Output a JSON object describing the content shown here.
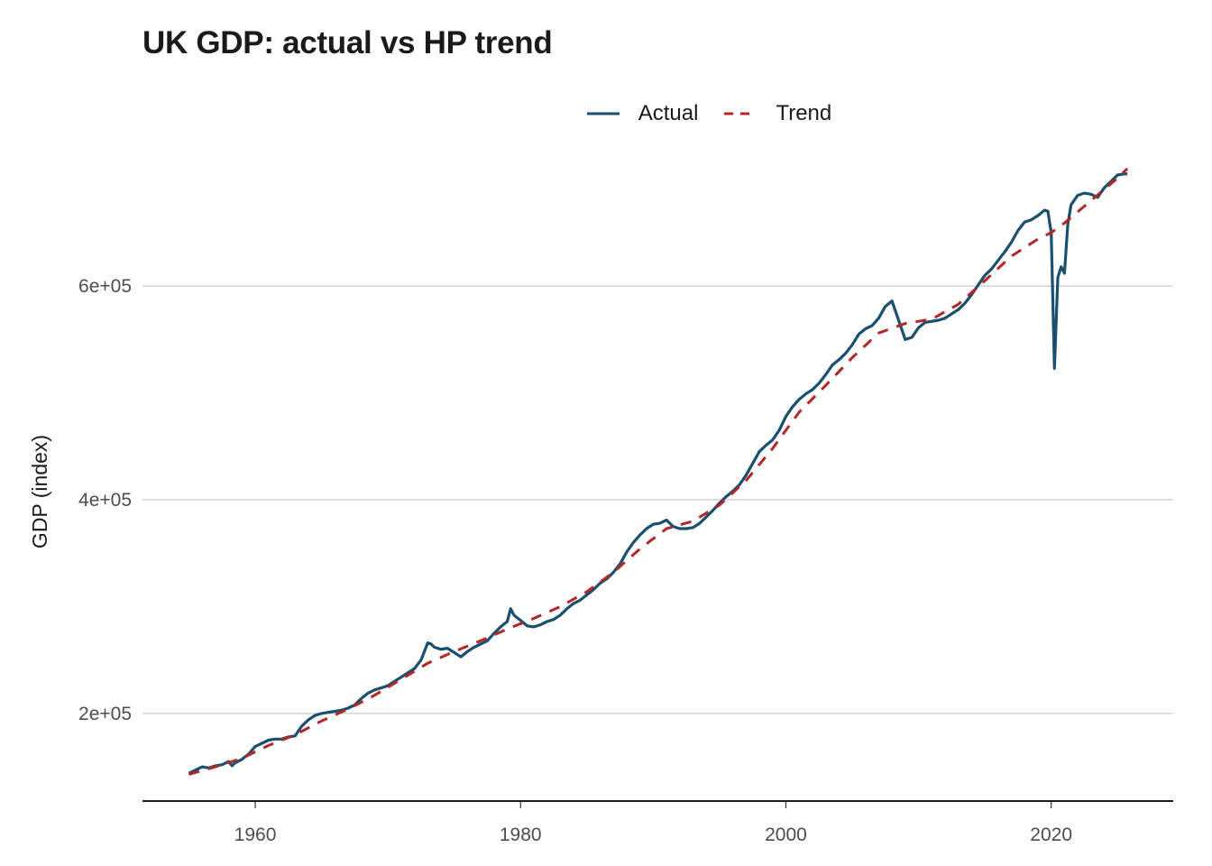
{
  "chart_data": {
    "type": "line",
    "title": "UK GDP: actual vs HP trend",
    "xlabel": "",
    "ylabel": "GDP (index)",
    "xlim": [
      1951.5,
      2029.2
    ],
    "ylim": [
      118000,
      720000
    ],
    "x_ticks": [
      1960,
      1980,
      2000,
      2020
    ],
    "x_tick_labels": [
      "1960",
      "1980",
      "2000",
      "2020"
    ],
    "y_ticks": [
      200000,
      400000,
      600000
    ],
    "y_tick_labels": [
      "2e+05",
      "4e+05",
      "6e+05"
    ],
    "grid": "horizontal-major",
    "legend": {
      "placement": "top-center",
      "entries": [
        {
          "label": "Actual",
          "style": "solid",
          "color": "#1b4f6e"
        },
        {
          "label": "Trend",
          "style": "dashed",
          "color": "#b2272a"
        }
      ]
    },
    "series": [
      {
        "name": "Actual",
        "color": "#1b4f6e",
        "style": "solid",
        "x": [
          1955.0,
          1955.5,
          1956.0,
          1956.5,
          1957.0,
          1957.5,
          1958.0,
          1958.25,
          1958.5,
          1959.0,
          1959.5,
          1960.0,
          1960.5,
          1961.0,
          1961.5,
          1962.0,
          1962.5,
          1963.0,
          1963.5,
          1964.0,
          1964.5,
          1965.0,
          1965.5,
          1966.0,
          1966.5,
          1967.0,
          1967.5,
          1968.0,
          1968.5,
          1969.0,
          1969.5,
          1970.0,
          1970.5,
          1971.0,
          1971.5,
          1972.0,
          1972.5,
          1973.0,
          1973.25,
          1973.5,
          1974.0,
          1974.5,
          1975.0,
          1975.5,
          1976.0,
          1976.5,
          1977.0,
          1977.5,
          1978.0,
          1978.5,
          1979.0,
          1979.25,
          1979.5,
          1980.0,
          1980.5,
          1981.0,
          1981.5,
          1982.0,
          1982.5,
          1983.0,
          1983.5,
          1984.0,
          1984.5,
          1985.0,
          1985.5,
          1986.0,
          1986.5,
          1987.0,
          1987.5,
          1988.0,
          1988.5,
          1989.0,
          1989.5,
          1990.0,
          1990.5,
          1991.0,
          1991.5,
          1992.0,
          1992.5,
          1993.0,
          1993.5,
          1994.0,
          1994.5,
          1995.0,
          1995.5,
          1996.0,
          1996.5,
          1997.0,
          1997.5,
          1998.0,
          1998.5,
          1999.0,
          1999.5,
          2000.0,
          2000.5,
          2001.0,
          2001.5,
          2002.0,
          2002.5,
          2003.0,
          2003.5,
          2004.0,
          2004.5,
          2005.0,
          2005.5,
          2006.0,
          2006.5,
          2007.0,
          2007.5,
          2008.0,
          2008.5,
          2009.0,
          2009.5,
          2010.0,
          2010.5,
          2011.0,
          2011.5,
          2012.0,
          2012.5,
          2013.0,
          2013.5,
          2014.0,
          2014.5,
          2015.0,
          2015.5,
          2016.0,
          2016.5,
          2017.0,
          2017.5,
          2018.0,
          2018.5,
          2019.0,
          2019.5,
          2019.75,
          2020.0,
          2020.25,
          2020.5,
          2020.75,
          2021.0,
          2021.25,
          2021.5,
          2022.0,
          2022.5,
          2023.0,
          2023.5,
          2024.0,
          2024.5,
          2025.0,
          2025.5,
          2025.75
        ],
        "y": [
          144000,
          147000,
          150000,
          149000,
          151000,
          152000,
          155000,
          151000,
          154000,
          157000,
          162000,
          169000,
          172000,
          175000,
          176000,
          176000,
          178000,
          179000,
          188000,
          194000,
          198000,
          200000,
          201000,
          202000,
          203000,
          205000,
          208000,
          214000,
          219000,
          222000,
          224000,
          226000,
          230000,
          234000,
          238000,
          242000,
          250000,
          266000,
          265000,
          262000,
          260000,
          261000,
          257000,
          253000,
          258000,
          262000,
          265000,
          268000,
          275000,
          281000,
          286000,
          298000,
          292000,
          287000,
          282000,
          281000,
          283000,
          286000,
          288000,
          292000,
          298000,
          303000,
          306000,
          311000,
          316000,
          322000,
          326000,
          332000,
          340000,
          351000,
          360000,
          367000,
          373000,
          377000,
          378000,
          381000,
          375000,
          373000,
          373000,
          374000,
          378000,
          384000,
          390000,
          397000,
          403000,
          408000,
          414000,
          423000,
          434000,
          445000,
          451000,
          456000,
          465000,
          478000,
          487000,
          494000,
          499000,
          503000,
          509000,
          517000,
          526000,
          531000,
          537000,
          545000,
          555000,
          560000,
          563000,
          570000,
          581000,
          586000,
          568000,
          550000,
          552000,
          561000,
          566000,
          567000,
          568000,
          570000,
          574000,
          578000,
          584000,
          592000,
          601000,
          610000,
          616000,
          624000,
          632000,
          641000,
          652000,
          660000,
          662000,
          666000,
          671000,
          670000,
          650000,
          523000,
          608000,
          618000,
          612000,
          658000,
          676000,
          685000,
          687000,
          686000,
          683000,
          692000,
          698000,
          704000,
          705000,
          705000
        ]
      },
      {
        "name": "Trend",
        "color": "#b2272a",
        "style": "dashed",
        "x": [
          1955,
          1957,
          1959,
          1961,
          1963,
          1965,
          1967,
          1969,
          1971,
          1973,
          1975,
          1977,
          1979,
          1981,
          1983,
          1985,
          1987,
          1989,
          1991,
          1993,
          1995,
          1997,
          1999,
          2001,
          2003,
          2005,
          2007,
          2009,
          2011,
          2013,
          2015,
          2017,
          2019,
          2020,
          2021,
          2023,
          2025,
          2025.75
        ],
        "y": [
          143000,
          150000,
          158000,
          170000,
          180000,
          193000,
          204000,
          217000,
          232000,
          247000,
          258000,
          268000,
          279000,
          289000,
          300000,
          314000,
          332000,
          354000,
          373000,
          380000,
          395000,
          418000,
          448000,
          482000,
          507000,
          533000,
          556000,
          565000,
          569000,
          583000,
          605000,
          628000,
          644000,
          650000,
          659000,
          680000,
          701000,
          710000
        ]
      }
    ]
  }
}
